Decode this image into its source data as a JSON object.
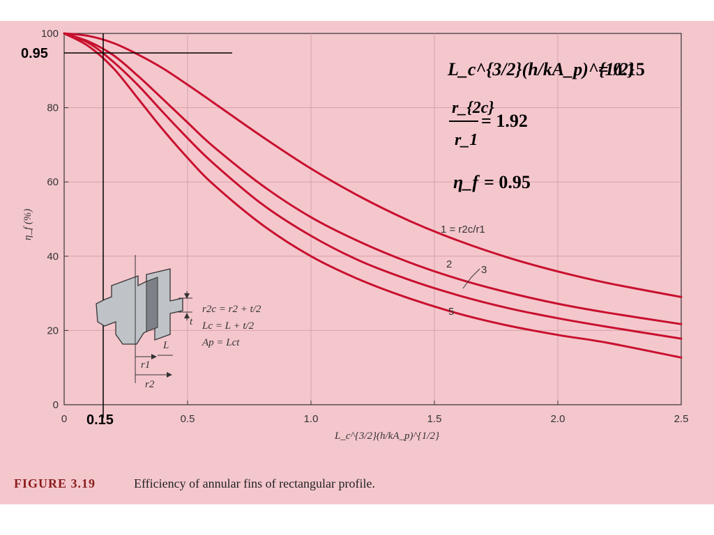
{
  "chart_data": {
    "type": "line",
    "title": "",
    "xlabel": "L_c^{3/2}(h/kA_p)^{1/2}",
    "ylabel": "η_f (%)",
    "xlim": [
      0,
      2.5
    ],
    "ylim": [
      0,
      100
    ],
    "x_ticks": [
      "0",
      "0.5",
      "1.0",
      "1.5",
      "2.0",
      "2.5"
    ],
    "y_ticks": [
      "0",
      "20",
      "40",
      "60",
      "80",
      "100"
    ],
    "grid": true,
    "x": [
      0,
      0.1,
      0.2,
      0.3,
      0.4,
      0.5,
      0.6,
      0.8,
      1.0,
      1.2,
      1.4,
      1.6,
      1.8,
      2.0,
      2.2,
      2.5
    ],
    "series": [
      {
        "name": "1 = r2c/r1",
        "color": "#c8102e",
        "values": [
          100,
          99.3,
          97.4,
          94.3,
          90.6,
          86.2,
          81.6,
          72.3,
          63.6,
          56.0,
          49.5,
          44.1,
          39.6,
          35.9,
          32.8,
          29.0
        ]
      },
      {
        "name": "2",
        "color": "#c8102e",
        "values": [
          100,
          97.8,
          94.1,
          88.5,
          82.3,
          76.0,
          69.8,
          59.2,
          50.5,
          43.8,
          38.3,
          33.8,
          30.2,
          27.2,
          24.8,
          21.7
        ]
      },
      {
        "name": "3",
        "color": "#c8102e",
        "values": [
          100,
          97.4,
          92.3,
          86.0,
          78.8,
          71.8,
          65.3,
          54.1,
          45.5,
          38.7,
          33.6,
          29.4,
          26.0,
          23.3,
          21.0,
          17.8
        ]
      },
      {
        "name": "5",
        "color": "#c8102e",
        "values": [
          100,
          96.5,
          90.6,
          82.4,
          74.1,
          66.5,
          59.6,
          48.6,
          40.0,
          33.6,
          28.6,
          24.5,
          21.3,
          18.8,
          16.7,
          12.7
        ]
      }
    ],
    "curve_labels": [
      "1 = r2c/r1",
      "2",
      "3",
      "5"
    ],
    "annotations": {
      "x_mark": "0.15",
      "y_mark": "0.95",
      "x_mark_value": 0.15,
      "y_mark_value": 95
    },
    "equations": {
      "eq1_lhs": "L_c^{3/2}(h/kA_p)^{1/2}",
      "eq1_rhs": "= 0.15",
      "eq2_num": "r_{2c}",
      "eq2_den": "r_1",
      "eq2_rhs": "= 1.92",
      "eq3_lhs": "η_f",
      "eq3_rhs": "= 0.95"
    },
    "inset": {
      "eq_r2c": "r2c = r2 + t/2",
      "eq_lc": "Lc = L + t/2",
      "eq_ap": "Ap = Lct",
      "label_t": "t",
      "label_L": "L",
      "label_r1": "r1",
      "label_r2": "r2"
    }
  },
  "caption": {
    "lead": "FIGURE 3.19",
    "text": "Efficiency of annular fins of rectangular profile."
  },
  "colors": {
    "background": "#f4c7cd",
    "curve": "#c8102e",
    "grid": "#d9a0aa",
    "caption_lead": "#8a1c1c"
  }
}
